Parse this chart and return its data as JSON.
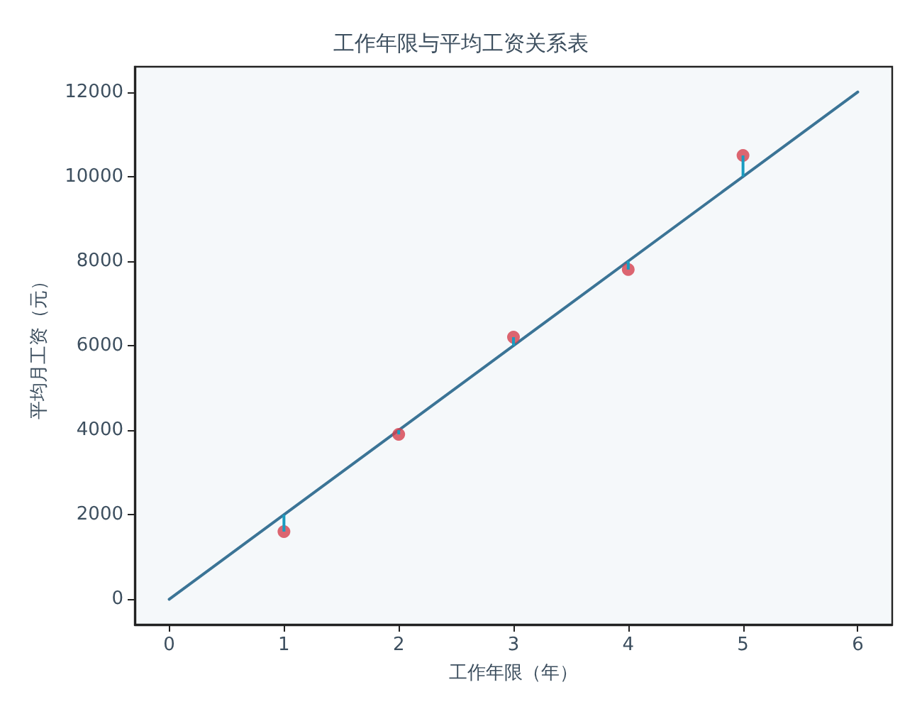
{
  "chart_data": {
    "type": "scatter",
    "title": "工作年限与平均工资关系表",
    "xlabel": "工作年限（年）",
    "ylabel": "平均月工资（元）",
    "xlim": [
      -0.3,
      6.3
    ],
    "xticks": [
      0,
      1,
      2,
      3,
      4,
      5,
      6
    ],
    "ylim": [
      -600,
      12600
    ],
    "yticks": [
      0,
      2000,
      4000,
      6000,
      8000,
      10000,
      12000
    ],
    "grid": false,
    "series": [
      {
        "color": "#d6404e",
        "marker": "circle",
        "x": [
          1,
          2,
          3,
          4,
          5
        ],
        "values": [
          1600,
          3900,
          6200,
          7800,
          10500
        ],
        "errors": [
          [
            1600,
            2000
          ],
          [
            3900,
            4000
          ],
          [
            6000,
            6200
          ],
          [
            7800,
            8000
          ],
          [
            10000,
            10500
          ]
        ]
      },
      {
        "type": "line",
        "color": "#3b7496",
        "marker": "none",
        "x": [
          0,
          6
        ],
        "values": [
          0,
          12000
        ]
      }
    ]
  }
}
